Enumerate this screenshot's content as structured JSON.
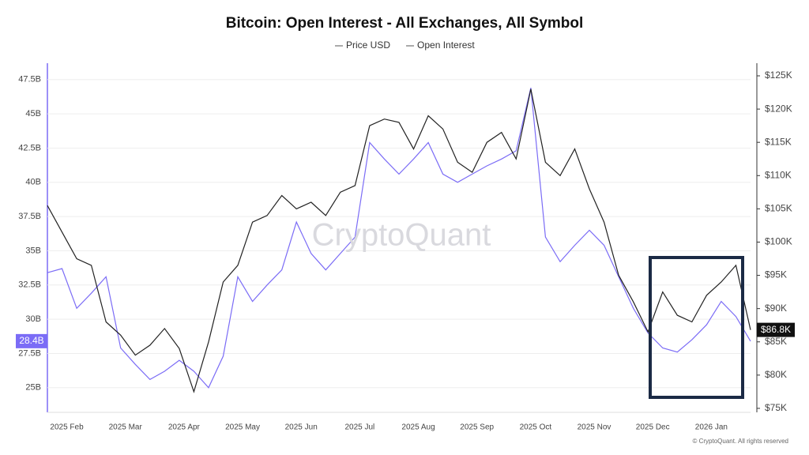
{
  "chart_data": {
    "type": "line",
    "title": "Bitcoin: Open Interest - All Exchanges, All Symbol",
    "watermark": "CryptoQuant",
    "footer": "© CryptoQuant. All rights reserved",
    "categories": [
      null,
      "2025 Feb",
      null,
      null,
      null,
      "2025 Mar",
      null,
      null,
      null,
      "2025 Apr",
      null,
      null,
      null,
      "2025 May",
      null,
      null,
      null,
      "2025 Jun",
      null,
      null,
      null,
      "2025 Jul",
      null,
      null,
      null,
      "2025 Aug",
      null,
      null,
      null,
      "2025 Sep",
      null,
      null,
      null,
      "2025 Oct",
      null,
      null,
      null,
      "2025 Nov",
      null,
      null,
      null,
      "2025 Dec",
      null,
      null,
      null,
      "2026 Jan",
      null,
      null,
      null
    ],
    "series": [
      {
        "name": "Price USD",
        "color": "#222222",
        "axis": "y2",
        "values": [
          105500,
          101500,
          97500,
          96500,
          88000,
          86000,
          83000,
          84500,
          87000,
          84000,
          77500,
          85000,
          94000,
          96500,
          103000,
          104000,
          107000,
          105000,
          106000,
          104000,
          107500,
          108500,
          117500,
          118500,
          118000,
          114000,
          119000,
          117000,
          112000,
          110500,
          115000,
          116500,
          112500,
          123000,
          112000,
          110000,
          114000,
          108000,
          103000,
          95000,
          91000,
          86500,
          92500,
          89000,
          88000,
          92000,
          94000,
          96500,
          86800
        ]
      },
      {
        "name": "Open Interest",
        "color": "#7b6cf6",
        "values": [
          33.4,
          33.7,
          30.8,
          31.9,
          33.1,
          27.9,
          26.7,
          25.6,
          26.2,
          27,
          26.2,
          25,
          27.3,
          33.1,
          31.3,
          32.5,
          33.6,
          37.1,
          34.8,
          33.6,
          34.8,
          36,
          42.9,
          41.7,
          40.6,
          41.7,
          42.9,
          40.6,
          40,
          40.6,
          41.2,
          41.7,
          42.3,
          46.9,
          36,
          34.2,
          35.4,
          36.5,
          35.4,
          33.1,
          30.8,
          29,
          27.9,
          27.6,
          28.5,
          29.6,
          31.3,
          30.2,
          28.4
        ]
      }
    ],
    "ylim": [
      23.2,
      48.7
    ],
    "yticks": [
      {
        "value": 25,
        "label": "25B"
      },
      {
        "value": 27.5,
        "label": "27.5B"
      },
      {
        "value": 30,
        "label": "30B"
      },
      {
        "value": 32.5,
        "label": "32.5B"
      },
      {
        "value": 35,
        "label": "35B"
      },
      {
        "value": 37.5,
        "label": "37.5B"
      },
      {
        "value": 40,
        "label": "40B"
      },
      {
        "value": 42.5,
        "label": "42.5B"
      },
      {
        "value": 45,
        "label": "45B"
      },
      {
        "value": 47.5,
        "label": "47.5B"
      }
    ],
    "y2lim": [
      74400,
      126900
    ],
    "y2ticks": [
      {
        "value": 75000,
        "label": "$75K"
      },
      {
        "value": 80000,
        "label": "$80K"
      },
      {
        "value": 85000,
        "label": "$85K"
      },
      {
        "value": 90000,
        "label": "$90K"
      },
      {
        "value": 95000,
        "label": "$95K"
      },
      {
        "value": 100000,
        "label": "$100K"
      },
      {
        "value": 105000,
        "label": "$105K"
      },
      {
        "value": 110000,
        "label": "$110K"
      },
      {
        "value": 115000,
        "label": "$115K"
      },
      {
        "value": 120000,
        "label": "$120K"
      },
      {
        "value": 125000,
        "label": "$125K"
      }
    ],
    "current_labels": [
      {
        "value": 28.4,
        "label": "28.4B",
        "axis": "y"
      },
      {
        "value": 86800,
        "label": "$86.8K",
        "axis": "y2"
      }
    ],
    "grid": true
  }
}
